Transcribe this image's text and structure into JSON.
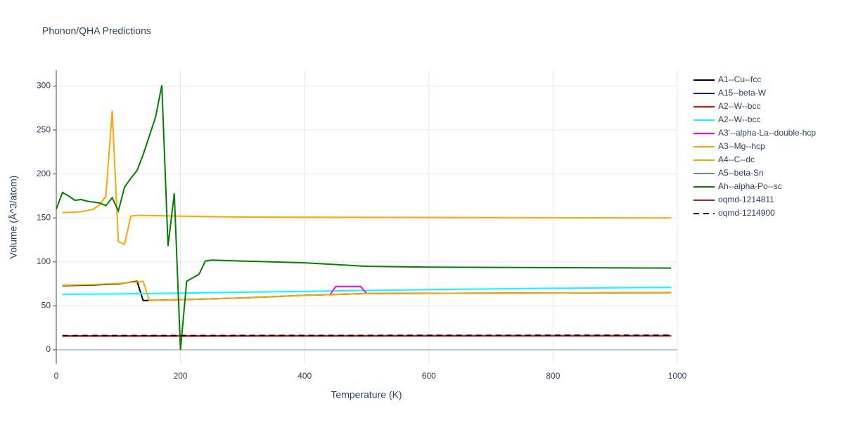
{
  "chart_data": {
    "type": "line",
    "title": "Phonon/QHA Predictions",
    "xlabel": "Temperature (K)",
    "ylabel": "Volume (Å^3/atom)",
    "xlim": [
      0,
      1000
    ],
    "ylim": [
      -16,
      318
    ],
    "xticks": [
      0,
      200,
      400,
      600,
      800,
      1000
    ],
    "yticks": [
      0,
      50,
      100,
      150,
      200,
      250,
      300
    ],
    "grid": true,
    "series": [
      {
        "name": "A1--Cu--fcc",
        "color": "#000000",
        "x": [
          10,
          50,
          100,
          130,
          140,
          200,
          300,
          400,
          500,
          990
        ],
        "values": [
          73,
          73.5,
          75,
          78,
          56,
          57,
          59,
          62,
          64,
          65
        ]
      },
      {
        "name": "A15--beta-W",
        "color": "#0000ff",
        "x": [
          10,
          990
        ],
        "values": [
          15.8,
          16
        ]
      },
      {
        "name": "A2--W--bcc",
        "color": "#ff0000",
        "x": [
          10,
          990
        ],
        "values": [
          15.6,
          15.8
        ]
      },
      {
        "name": "A2--W--bcc",
        "color": "#00ffff",
        "x": [
          10,
          200,
          400,
          600,
          800,
          990
        ],
        "values": [
          63,
          64.5,
          66.5,
          68.5,
          70,
          71
        ]
      },
      {
        "name": "A3'--alpha-La--double-hcp",
        "color": "#ff00ff",
        "x": [
          440,
          450,
          490,
          500
        ],
        "values": [
          62,
          72,
          72,
          64
        ]
      },
      {
        "name": "A3--Mg--hcp",
        "color": "#ffa500",
        "x": [
          10,
          40,
          60,
          70,
          80,
          90,
          100,
          110,
          120,
          130,
          200,
          300,
          990
        ],
        "values": [
          156,
          157,
          160,
          165,
          175,
          272,
          123,
          120,
          152,
          153,
          152,
          151,
          150
        ]
      },
      {
        "name": "A4--C--dc",
        "color": "#ffa500",
        "x": [
          10,
          50,
          100,
          140,
          150,
          200,
          300,
          400,
          500,
          990
        ],
        "values": [
          73.5,
          74,
          75.5,
          78,
          56,
          57,
          59,
          62,
          64,
          65
        ]
      },
      {
        "name": "A5--beta-Sn",
        "color": "#808080",
        "x": [
          10,
          990
        ],
        "values": [
          16,
          16.2
        ]
      },
      {
        "name": "Ah--alpha-Po--sc",
        "color": "#008000",
        "x": [
          0,
          10,
          20,
          30,
          40,
          50,
          70,
          80,
          90,
          100,
          110,
          120,
          130,
          140,
          160,
          170,
          180,
          190,
          200,
          210,
          220,
          230,
          240,
          250,
          300,
          400,
          500,
          600,
          990
        ],
        "values": [
          160,
          179,
          175,
          170,
          171,
          169,
          167,
          164,
          173,
          158,
          185,
          195,
          204,
          222,
          265,
          301,
          118,
          178,
          0,
          78,
          82,
          86,
          101,
          102,
          101,
          99,
          95,
          94,
          93
        ]
      },
      {
        "name": "oqmd-1214811",
        "color": "#b22222",
        "x": [
          10,
          990
        ],
        "values": [
          16,
          16.2
        ]
      },
      {
        "name": "oqmd-1214900",
        "color": "#000000",
        "dash": "dash",
        "x": [
          10,
          990
        ],
        "values": [
          16.2,
          16.6
        ]
      }
    ]
  }
}
